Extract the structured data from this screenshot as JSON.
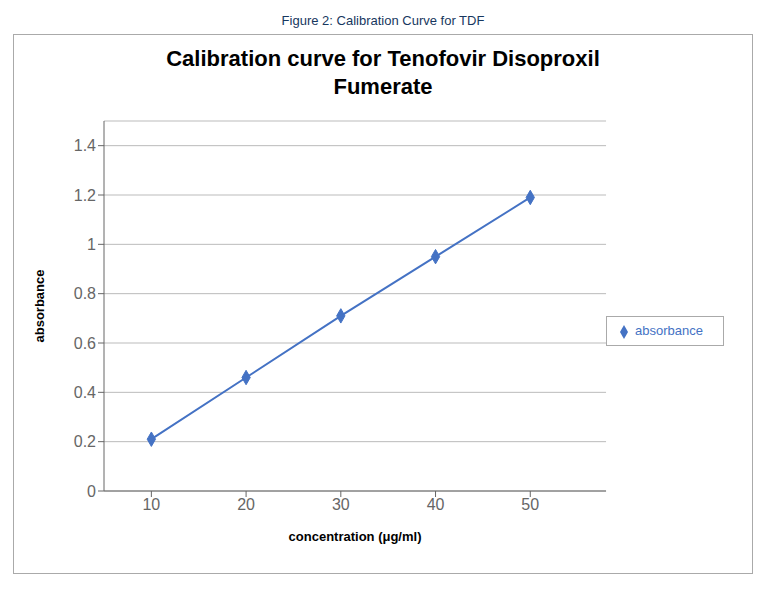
{
  "chart_data": {
    "type": "line",
    "caption": "Figure 2:  Calibration Curve for TDF",
    "title": "Calibration curve for Tenofovir Disoproxil\nFumerate",
    "xlabel": "concentration (μg/ml)",
    "ylabel": "absorbance",
    "x": [
      10,
      20,
      30,
      40,
      50
    ],
    "series": [
      {
        "name": "absorbance",
        "color": "#4472C4",
        "marker": "diamond",
        "values": [
          0.21,
          0.46,
          0.71,
          0.95,
          1.19
        ]
      }
    ],
    "xlim": [
      5,
      58
    ],
    "xticks": [
      10,
      20,
      30,
      40,
      50
    ],
    "ylim": [
      0,
      1.5
    ],
    "yticks": [
      0,
      0.2,
      0.4,
      0.6,
      0.8,
      1,
      1.2,
      1.4
    ],
    "grid": true,
    "legend": "right"
  }
}
